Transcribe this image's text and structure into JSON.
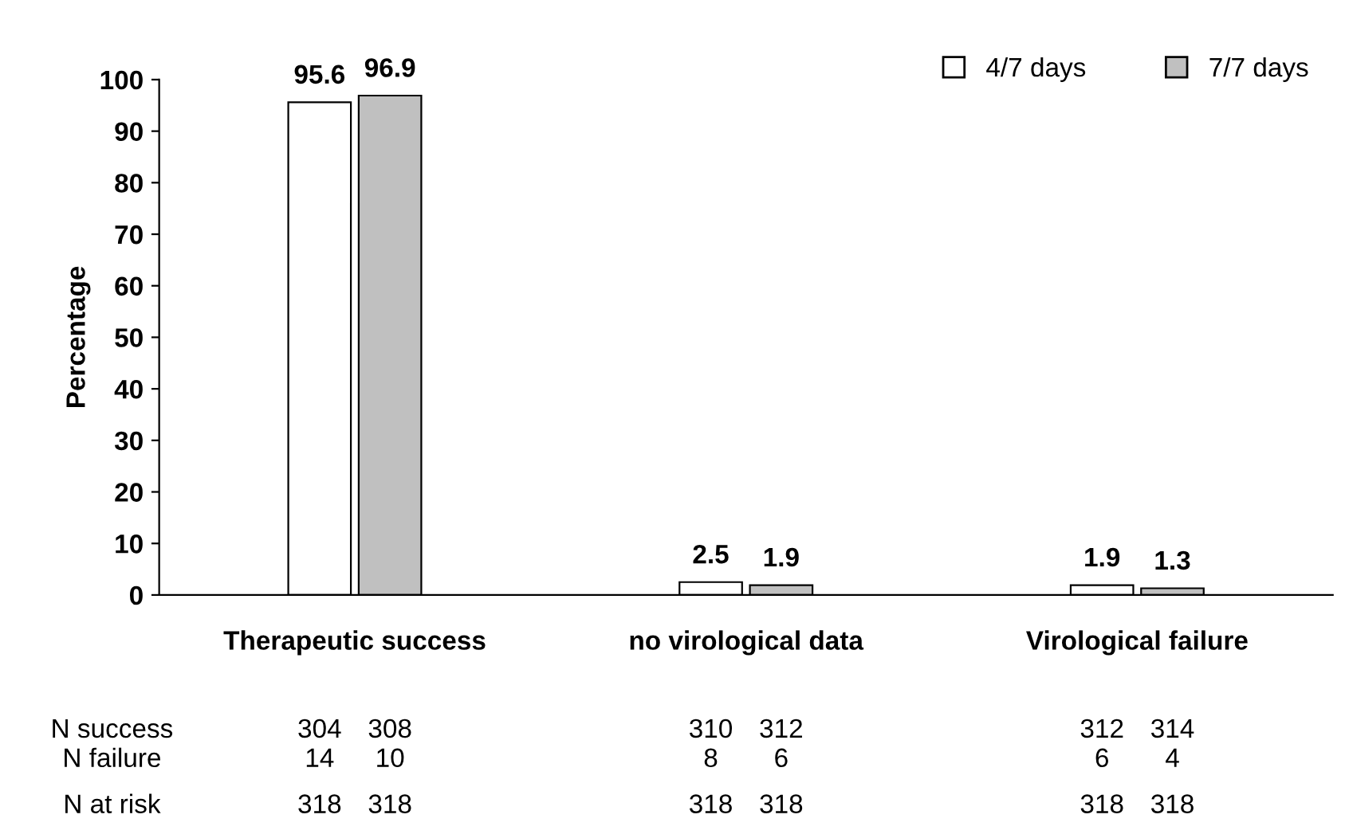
{
  "chart_data": {
    "type": "bar",
    "ylabel": "Percentage",
    "categories": [
      "Therapeutic success",
      "no virological data",
      "Virological failure"
    ],
    "series": [
      {
        "name": "4/7 days",
        "color": "#ffffff",
        "values": [
          95.6,
          2.5,
          1.9
        ]
      },
      {
        "name": "7/7 days",
        "color": "#c0c0c0",
        "values": [
          96.9,
          1.9,
          1.3
        ]
      }
    ],
    "ylim": [
      0,
      100
    ],
    "yticks": [
      0,
      10,
      20,
      30,
      40,
      50,
      60,
      70,
      80,
      90,
      100
    ],
    "data_labels": true,
    "legend": "top right",
    "grid": false,
    "annotations": [
      "N success",
      "304",
      "308",
      "310",
      "312",
      "312",
      "314",
      "N failure",
      "14",
      "10",
      "8",
      "6",
      "6",
      "4",
      "N at risk",
      "318",
      "318",
      "318",
      "318",
      "318",
      "318"
    ]
  }
}
